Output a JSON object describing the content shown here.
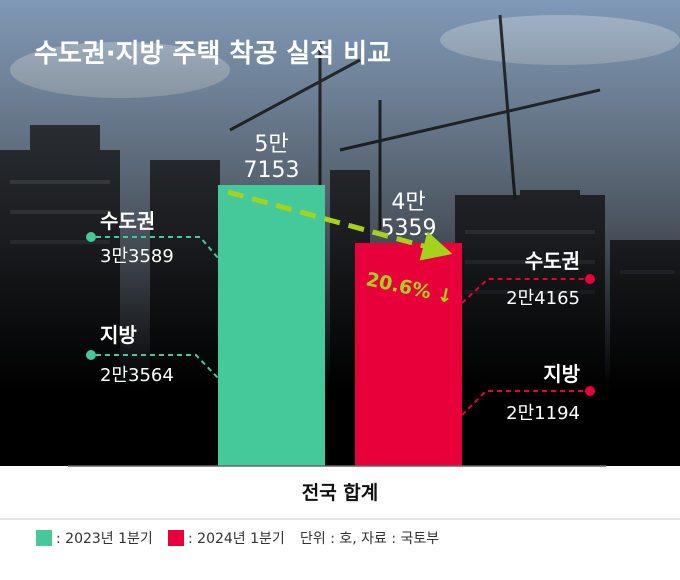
{
  "title": "수도권·지방 주택 착공 실적 비교",
  "xlabel": "전국 합계",
  "legend": [
    {
      "label": ": 2023년 1분기",
      "color": "#45c99a"
    },
    {
      "label": ": 2024년 1분기",
      "color": "#e8003b"
    }
  ],
  "note": "단위 : 호, 자료 : 국토부",
  "change_label": "20.6% ↓",
  "colors": {
    "green": "#45c99a",
    "red": "#e8003b",
    "arrow": "#a6d21e",
    "sky": "#8aa2bd"
  },
  "chart_data": {
    "type": "bar",
    "categories": [
      "전국 합계"
    ],
    "series": [
      {
        "name": "2023년 1분기",
        "values": [
          57153
        ],
        "label_lines": [
          "5만",
          "7153"
        ],
        "breakdown": [
          {
            "name": "수도권",
            "value": 33589,
            "label": "3만3589"
          },
          {
            "name": "지방",
            "value": 23564,
            "label": "2만3564"
          }
        ]
      },
      {
        "name": "2024년 1분기",
        "values": [
          45359
        ],
        "label_lines": [
          "4만",
          "5359"
        ],
        "breakdown": [
          {
            "name": "수도권",
            "value": 24165,
            "label": "2만4165"
          },
          {
            "name": "지방",
            "value": 21194,
            "label": "2만1194"
          }
        ]
      }
    ],
    "change_percent": -20.6
  }
}
